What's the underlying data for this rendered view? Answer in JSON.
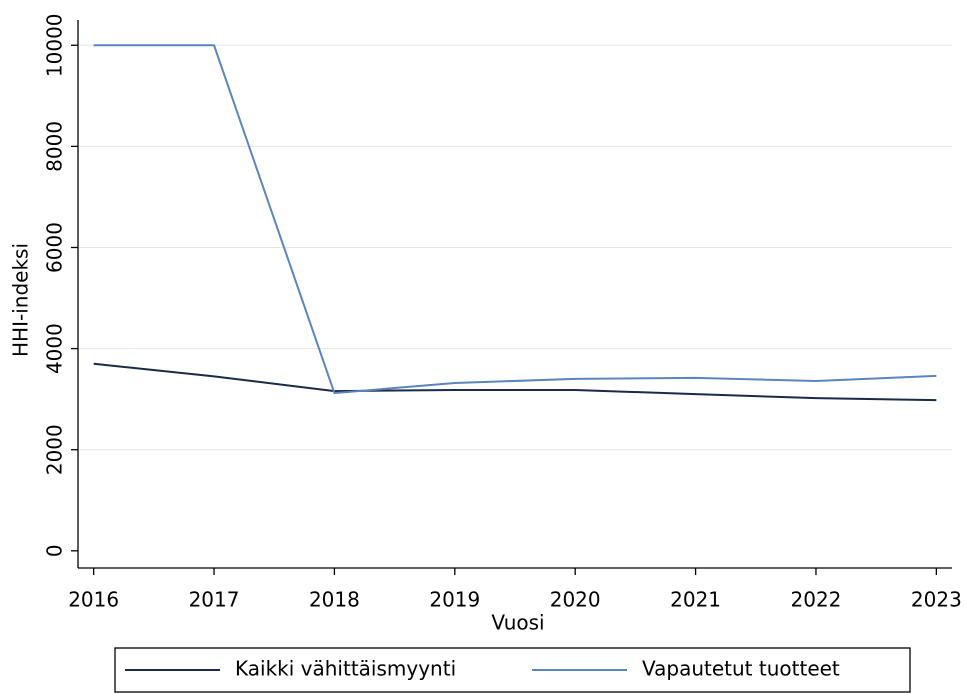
{
  "chart_data": {
    "type": "line",
    "x_label": "Vuosi",
    "y_label": "HHI-indeksi",
    "x": [
      2016,
      2017,
      2018,
      2019,
      2020,
      2021,
      2022,
      2023
    ],
    "series": [
      {
        "name": "Kaikki vähittäismyynti",
        "color": "#1b2a49",
        "values": [
          3700,
          3450,
          3160,
          3180,
          3180,
          3100,
          3020,
          2980
        ]
      },
      {
        "name": "Vapautetut tuotteet",
        "color": "#5a85bf",
        "values": [
          10000,
          10000,
          3120,
          3320,
          3400,
          3420,
          3360,
          3460
        ]
      }
    ],
    "xlim": [
      2015.87,
      2023.13
    ],
    "xticks": [
      2016,
      2017,
      2018,
      2019,
      2020,
      2021,
      2022,
      2023
    ],
    "ylim": [
      -340,
      10500
    ],
    "yticks": [
      0,
      2000,
      4000,
      6000,
      8000,
      10000
    ],
    "grid": true,
    "legend": "bottom"
  }
}
